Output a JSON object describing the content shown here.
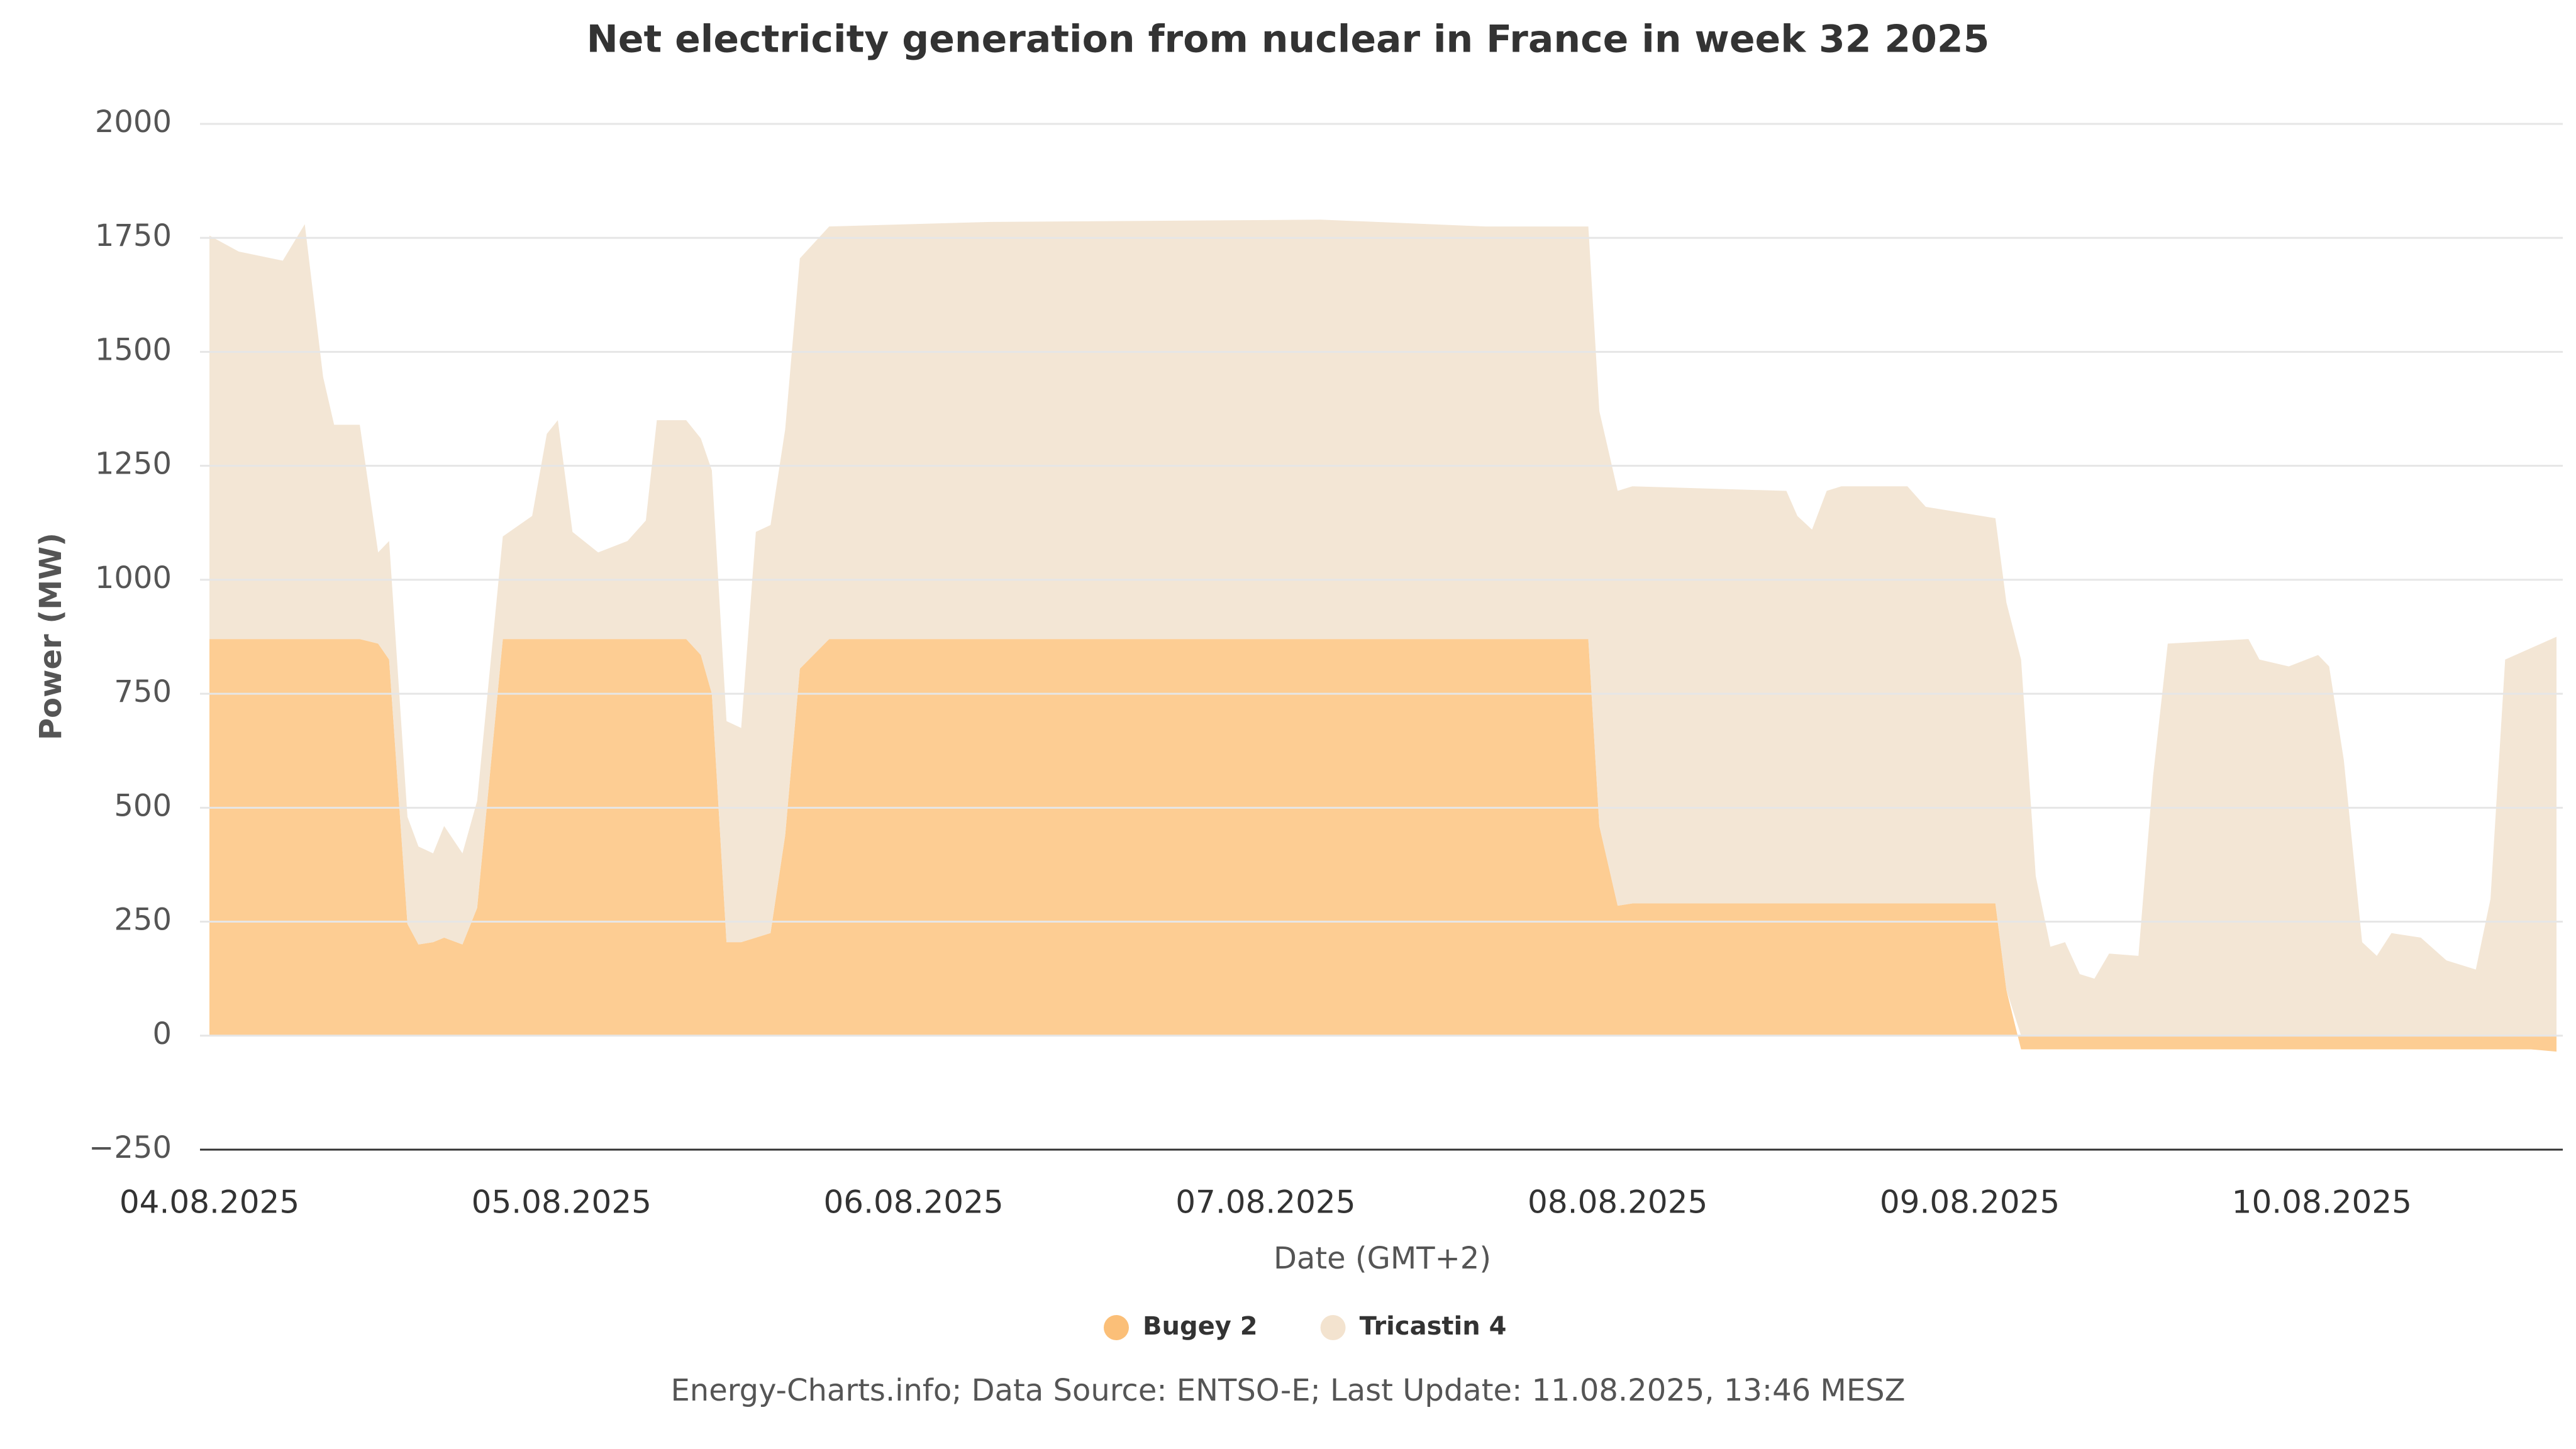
{
  "chart_data": {
    "type": "stacked_area",
    "title": "Net electricity generation from nuclear in France in week 32 2025",
    "xlabel": "Date (GMT+2)",
    "ylabel": "Power (MW)",
    "source": "Energy-Charts.info; Data Source: ENTSO-E; Last Update: 11.08.2025, 13:46 MESZ",
    "x": [
      0,
      2,
      5,
      6.5,
      7.75,
      8.5,
      10.25,
      11.5,
      12.25,
      13.5,
      14.25,
      15.25,
      16,
      17.25,
      18.25,
      20,
      22,
      23,
      23.75,
      24.75,
      26.5,
      28.5,
      29.75,
      30.5,
      32.5,
      33.5,
      34.25,
      35.25,
      36.25,
      37.25,
      38.25,
      39.25,
      40.25,
      42.25,
      53.25,
      75.75,
      87,
      94,
      94.75,
      96,
      97,
      107.5,
      108.25,
      109.25,
      110.25,
      111.25,
      115.75,
      117,
      121.75,
      122.5,
      123.5,
      124.5,
      125.5,
      126.5,
      127.5,
      128.5,
      129.5,
      131.5,
      132.5,
      133.5,
      139,
      139.75,
      141.75,
      143.75,
      144.5,
      145.5,
      146.75,
      147.75,
      148.75,
      150.75,
      152.5,
      154.5,
      155.5,
      156.5,
      158.25,
      160
    ],
    "series": [
      {
        "name": "Bugey 2",
        "color": "#fdcd93",
        "legend_color": "#fbbf78",
        "values": [
          870,
          870,
          870,
          870,
          870,
          870,
          870,
          860,
          825,
          245,
          200,
          205,
          215,
          200,
          280,
          870,
          870,
          870,
          870,
          870,
          870,
          870,
          870,
          870,
          870,
          835,
          750,
          205,
          205,
          215,
          225,
          440,
          805,
          870,
          870,
          870,
          870,
          870,
          460,
          285,
          290,
          290,
          290,
          290,
          290,
          290,
          290,
          290,
          290,
          100,
          -30,
          -30,
          -30,
          -30,
          -30,
          -30,
          -30,
          -30,
          -30,
          -30,
          -30,
          -30,
          -30,
          -30,
          -30,
          -30,
          -30,
          -30,
          -30,
          -30,
          -30,
          -30,
          -30,
          -30,
          -30,
          -35
        ]
      },
      {
        "name": "Tricastin 4",
        "color": "#f3e6d5",
        "legend_color": "#f3e3cf",
        "values": [
          885,
          850,
          830,
          910,
          575,
          470,
          470,
          200,
          260,
          235,
          215,
          195,
          245,
          200,
          235,
          225,
          270,
          450,
          480,
          235,
          190,
          215,
          260,
          480,
          480,
          475,
          490,
          485,
          470,
          890,
          895,
          890,
          900,
          905,
          915,
          920,
          905,
          905,
          910,
          910,
          915,
          905,
          850,
          820,
          905,
          915,
          915,
          870,
          845,
          850,
          825,
          350,
          195,
          205,
          135,
          125,
          180,
          175,
          570,
          860,
          870,
          825,
          810,
          835,
          810,
          605,
          205,
          175,
          225,
          215,
          165,
          145,
          300,
          825,
          850,
          875
        ]
      }
    ],
    "xlim": [
      0,
      160
    ],
    "xticks": [
      {
        "value": 0,
        "label": "04.08.2025"
      },
      {
        "value": 24,
        "label": "05.08.2025"
      },
      {
        "value": 48,
        "label": "06.08.2025"
      },
      {
        "value": 72,
        "label": "07.08.2025"
      },
      {
        "value": 96,
        "label": "08.08.2025"
      },
      {
        "value": 120,
        "label": "09.08.2025"
      },
      {
        "value": 144,
        "label": "10.08.2025"
      }
    ],
    "ylim": [
      -250,
      2000
    ],
    "yticks": [
      {
        "value": -250,
        "label": "−250"
      },
      0,
      250,
      500,
      750,
      1000,
      1250,
      1500,
      1750,
      2000
    ],
    "grid": true,
    "legend": "bottom"
  }
}
